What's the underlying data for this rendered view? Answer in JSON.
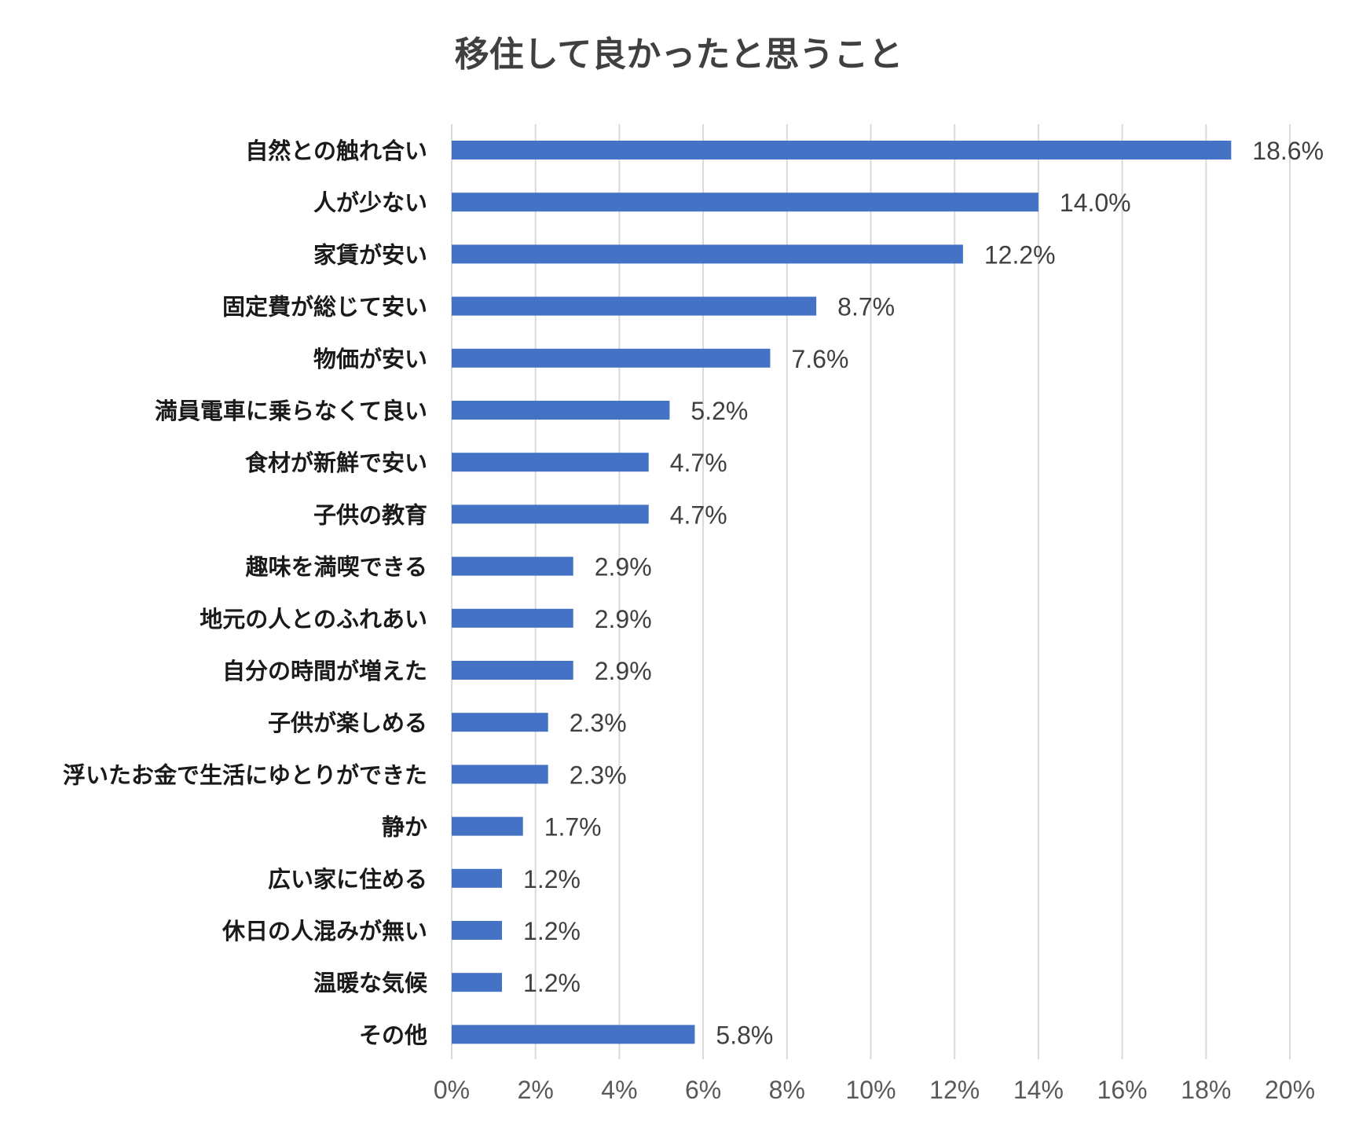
{
  "chart_data": {
    "type": "bar",
    "orientation": "horizontal",
    "title": "移住して良かったと思うこと",
    "categories": [
      "自然との触れ合い",
      "人が少ない",
      "家賃が安い",
      "固定費が総じて安い",
      "物価が安い",
      "満員電車に乗らなくて良い",
      "食材が新鮮で安い",
      "子供の教育",
      "趣味を満喫できる",
      "地元の人とのふれあい",
      "自分の時間が増えた",
      "子供が楽しめる",
      "浮いたお金で生活にゆとりができた",
      "静か",
      "広い家に住める",
      "休日の人混みが無い",
      "温暖な気候",
      "その他"
    ],
    "values": [
      18.6,
      14.0,
      12.2,
      8.7,
      7.6,
      5.2,
      4.7,
      4.7,
      2.9,
      2.9,
      2.9,
      2.3,
      2.3,
      1.7,
      1.2,
      1.2,
      1.2,
      5.8
    ],
    "value_labels": [
      "18.6%",
      "14.0%",
      "12.2%",
      "8.7%",
      "7.6%",
      "5.2%",
      "4.7%",
      "4.7%",
      "2.9%",
      "2.9%",
      "2.9%",
      "2.3%",
      "2.3%",
      "1.7%",
      "1.2%",
      "1.2%",
      "1.2%",
      "5.8%"
    ],
    "x_ticks": [
      0,
      2,
      4,
      6,
      8,
      10,
      12,
      14,
      16,
      18,
      20
    ],
    "x_tick_labels": [
      "0%",
      "2%",
      "4%",
      "6%",
      "8%",
      "10%",
      "12%",
      "14%",
      "16%",
      "18%",
      "20%"
    ],
    "xlim": [
      0,
      20
    ],
    "xlabel": "",
    "ylabel": "",
    "grid": "vertical",
    "legend": "none",
    "bar_color": "#4472C4",
    "grid_color": "#D9D9D9"
  }
}
